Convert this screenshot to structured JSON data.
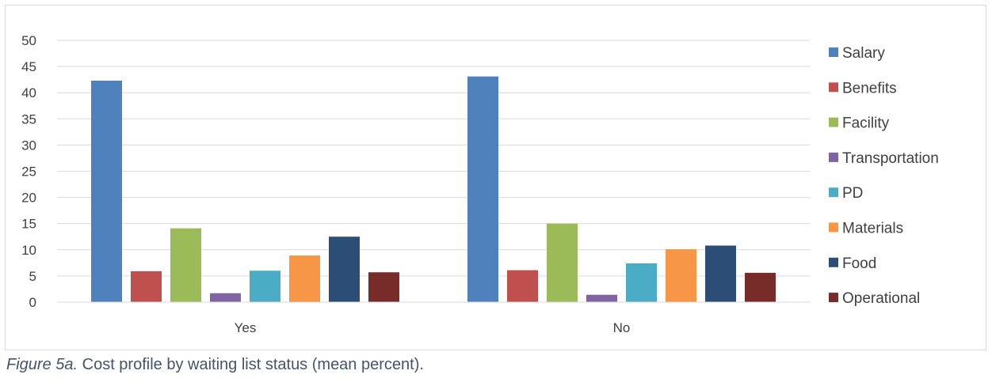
{
  "chart_data": {
    "type": "bar",
    "categories": [
      "Yes",
      "No"
    ],
    "series": [
      {
        "name": "Salary",
        "values": [
          42.3,
          43.1
        ],
        "color": "#4f81bd"
      },
      {
        "name": "Benefits",
        "values": [
          5.9,
          6.1
        ],
        "color": "#c0504d"
      },
      {
        "name": "Facility",
        "values": [
          14.1,
          15.0
        ],
        "color": "#9bbb59"
      },
      {
        "name": "Transportation",
        "values": [
          1.7,
          1.4
        ],
        "color": "#8064a2"
      },
      {
        "name": "PD",
        "values": [
          6.0,
          7.4
        ],
        "color": "#4bacc6"
      },
      {
        "name": "Materials",
        "values": [
          8.9,
          10.1
        ],
        "color": "#f79646"
      },
      {
        "name": "Food",
        "values": [
          12.5,
          10.8
        ],
        "color": "#2c4d75"
      },
      {
        "name": "Operational",
        "values": [
          5.7,
          5.6
        ],
        "color": "#772c2a"
      }
    ],
    "yticks": [
      "0",
      "5",
      "10",
      "15",
      "20",
      "25",
      "30",
      "35",
      "40",
      "45",
      "50"
    ],
    "ylim": [
      0,
      50
    ],
    "ytick_step": 5,
    "grid": true,
    "legend_position": "right"
  },
  "caption": {
    "label": "Figure 5a.",
    "text": "Cost profile by waiting list status (mean percent)."
  }
}
